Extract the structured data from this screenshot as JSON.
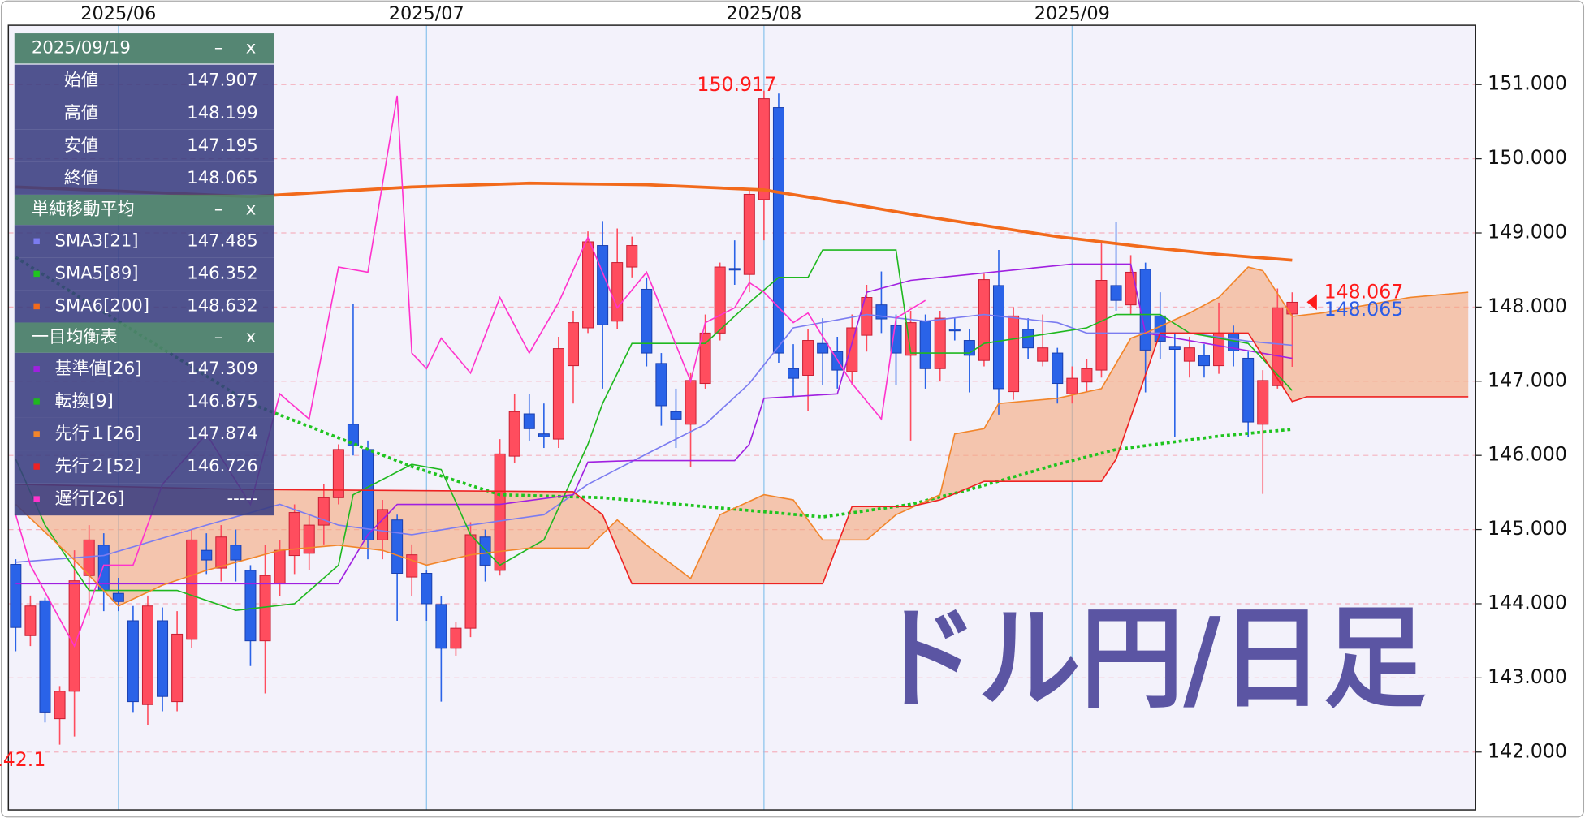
{
  "chart_data": {
    "type": "candlestick",
    "watermark": "ドル円/日足",
    "watermark_color": "#5b55a3",
    "up_color": "#ff4d5e",
    "down_color": "#2a63e8",
    "grid": true,
    "categories": [
      null,
      null,
      null,
      null,
      null,
      null,
      null,
      "2025/06",
      null,
      null,
      null,
      null,
      null,
      null,
      null,
      null,
      null,
      null,
      null,
      null,
      null,
      null,
      null,
      null,
      null,
      null,
      null,
      null,
      "2025/07",
      null,
      null,
      null,
      null,
      null,
      null,
      null,
      null,
      null,
      null,
      null,
      null,
      null,
      null,
      null,
      null,
      null,
      null,
      null,
      null,
      null,
      null,
      "2025/08",
      null,
      null,
      null,
      null,
      null,
      null,
      null,
      null,
      null,
      null,
      null,
      null,
      null,
      null,
      null,
      null,
      null,
      null,
      null,
      null,
      "2025/09",
      null,
      null,
      null,
      null,
      null,
      null,
      null,
      null,
      null,
      null,
      null,
      null,
      null,
      null,
      null,
      null,
      null,
      null,
      null,
      null,
      null,
      null,
      null,
      null,
      null,
      null,
      null
    ],
    "candles": {
      "open": [
        144.53,
        143.57,
        144.04,
        142.45,
        142.82,
        144.38,
        144.79,
        144.14,
        143.77,
        142.64,
        143.77,
        142.68,
        143.52,
        144.72,
        144.48,
        144.79,
        144.45,
        143.5,
        144.27,
        144.65,
        144.68,
        145.06,
        145.43,
        146.42,
        146.08,
        144.86,
        145.13,
        144.36,
        144.41,
        143.99,
        143.4,
        143.67,
        144.9,
        144.45,
        145.99,
        146.56,
        146.29,
        146.22,
        147.21,
        147.72,
        148.83,
        147.81,
        148.54,
        148.24,
        147.24,
        146.59,
        146.42,
        146.97,
        147.65,
        148.52,
        148.44,
        149.45,
        150.69,
        147.17,
        147.08,
        147.51,
        147.4,
        147.13,
        147.62,
        148.03,
        147.75,
        147.35,
        147.81,
        147.17,
        147.7,
        147.55,
        147.28,
        148.29,
        146.86,
        147.7,
        147.27,
        147.38,
        146.83,
        146.99,
        147.15,
        148.29,
        148.03,
        148.51,
        147.88,
        147.47,
        147.27,
        147.35,
        147.21,
        147.65,
        147.31,
        146.42,
        146.94,
        147.907,
        null,
        null,
        null,
        null,
        null,
        null,
        null,
        null,
        null,
        null,
        null,
        null
      ],
      "high": [
        144.6,
        144.11,
        144.08,
        142.89,
        144.72,
        145.06,
        144.95,
        144.35,
        143.97,
        144.11,
        143.95,
        143.9,
        145.0,
        144.95,
        145.06,
        145.0,
        144.52,
        144.79,
        144.86,
        145.34,
        145.2,
        145.61,
        146.15,
        148.04,
        146.2,
        145.4,
        145.2,
        144.8,
        144.45,
        144.1,
        143.75,
        145.1,
        145.0,
        146.22,
        146.83,
        146.83,
        146.7,
        147.6,
        147.95,
        149.02,
        149.16,
        149.06,
        148.95,
        148.4,
        147.38,
        146.9,
        147.11,
        147.9,
        148.6,
        148.9,
        149.6,
        150.917,
        150.88,
        147.5,
        147.7,
        147.85,
        147.6,
        147.9,
        148.3,
        148.48,
        147.9,
        147.95,
        147.9,
        147.95,
        147.85,
        147.7,
        148.45,
        148.77,
        148.0,
        147.85,
        147.9,
        147.45,
        147.2,
        147.3,
        148.88,
        149.15,
        148.7,
        148.6,
        148.2,
        147.65,
        147.6,
        147.5,
        148.06,
        147.75,
        147.4,
        147.15,
        148.25,
        148.199,
        null,
        null,
        null,
        null,
        null,
        null,
        null,
        null,
        null,
        null,
        null,
        null
      ],
      "low": [
        143.36,
        143.43,
        142.4,
        142.1,
        142.21,
        143.84,
        143.9,
        143.9,
        142.54,
        142.37,
        142.55,
        142.55,
        143.4,
        144.4,
        144.3,
        144.3,
        143.16,
        142.79,
        144.1,
        144.4,
        144.45,
        144.8,
        145.34,
        146.0,
        144.6,
        144.6,
        143.77,
        144.1,
        143.77,
        142.68,
        143.3,
        143.55,
        144.3,
        144.38,
        145.9,
        146.2,
        146.1,
        146.1,
        146.7,
        147.65,
        146.9,
        147.7,
        148.4,
        147.2,
        146.4,
        146.1,
        145.84,
        146.9,
        147.55,
        148.3,
        148.2,
        148.9,
        147.25,
        146.8,
        146.6,
        146.95,
        146.9,
        146.95,
        147.4,
        147.65,
        146.95,
        146.2,
        146.9,
        147.0,
        147.55,
        146.85,
        147.2,
        146.55,
        146.75,
        147.3,
        147.2,
        146.7,
        146.7,
        146.85,
        147.05,
        147.95,
        147.9,
        146.85,
        147.3,
        146.25,
        147.05,
        147.05,
        147.1,
        147.2,
        146.25,
        145.481,
        146.9,
        147.195,
        null,
        null,
        null,
        null,
        null,
        null,
        null,
        null,
        null,
        null,
        null,
        null
      ],
      "close": [
        143.68,
        143.97,
        142.54,
        142.82,
        144.31,
        144.86,
        144.18,
        144.03,
        142.68,
        143.97,
        142.75,
        143.59,
        144.86,
        144.59,
        144.9,
        144.59,
        143.5,
        144.38,
        144.72,
        145.23,
        145.06,
        145.43,
        146.08,
        146.13,
        144.86,
        145.27,
        144.41,
        144.66,
        144.0,
        143.4,
        143.67,
        144.93,
        144.52,
        146.02,
        146.59,
        146.36,
        146.25,
        147.44,
        147.79,
        148.88,
        147.76,
        148.6,
        148.83,
        147.38,
        146.67,
        146.49,
        147.01,
        147.65,
        148.54,
        148.5,
        149.52,
        150.81,
        147.38,
        147.04,
        147.55,
        147.38,
        147.15,
        147.72,
        148.13,
        147.84,
        147.38,
        147.79,
        147.17,
        147.85,
        147.68,
        147.35,
        148.37,
        146.9,
        147.88,
        147.45,
        147.45,
        146.97,
        147.04,
        147.17,
        148.36,
        148.09,
        148.47,
        147.42,
        147.54,
        147.43,
        147.45,
        147.21,
        147.65,
        147.41,
        146.45,
        147.01,
        147.99,
        148.065,
        null,
        null,
        null,
        null,
        null,
        null,
        null,
        null,
        null,
        null,
        null,
        null
      ]
    },
    "groups": [
      "単純移動平均",
      "一目均衡表"
    ],
    "series": [
      {
        "name": "SMA3[21]",
        "group": 0,
        "color": "#7b7cf0",
        "style": "thin",
        "x": [
          0,
          6,
          13,
          18,
          22,
          27,
          31,
          36,
          39,
          43,
          47,
          50,
          53,
          58,
          62,
          66,
          71,
          73,
          80,
          84,
          87
        ],
        "values": [
          144.56,
          144.65,
          145.06,
          145.34,
          145.06,
          144.93,
          145.06,
          145.2,
          145.61,
          146.02,
          146.42,
          146.97,
          147.72,
          147.9,
          147.81,
          147.9,
          147.79,
          147.65,
          147.65,
          147.54,
          147.485
        ]
      },
      {
        "name": "SMA5[89]",
        "group": 0,
        "color": "#1fc41f",
        "style": "dotted",
        "x": [
          0,
          16,
          27,
          33,
          40,
          51,
          55,
          61,
          65,
          71,
          75,
          82,
          87
        ],
        "values": [
          148.67,
          146.7,
          145.85,
          145.47,
          145.43,
          145.24,
          145.17,
          145.34,
          145.54,
          145.88,
          146.08,
          146.26,
          146.352
        ]
      },
      {
        "name": "SMA6[200]",
        "group": 0,
        "color": "#f26a1b",
        "style": "thick",
        "x": [
          0,
          16,
          27,
          35,
          43,
          51,
          56,
          62,
          71,
          77,
          82,
          87
        ],
        "values": [
          149.62,
          149.49,
          149.62,
          149.67,
          149.65,
          149.58,
          149.42,
          149.22,
          148.95,
          148.81,
          148.71,
          148.632
        ]
      },
      {
        "name": "基準値[26]",
        "group": 1,
        "color": "#a020e0",
        "style": "thin",
        "x": [
          0,
          22,
          24,
          26,
          33,
          38,
          39,
          42,
          49,
          50,
          51,
          56,
          58,
          61,
          72,
          76,
          77,
          87
        ],
        "values": [
          144.27,
          144.27,
          144.93,
          145.34,
          145.34,
          145.47,
          145.91,
          145.93,
          145.93,
          146.15,
          146.77,
          146.83,
          148.2,
          148.36,
          148.58,
          148.58,
          147.65,
          147.309
        ]
      },
      {
        "name": "転換[9]",
        "group": 1,
        "color": "#1fb81f",
        "style": "thin",
        "x": [
          0,
          2,
          5,
          11,
          15,
          19,
          22,
          23,
          27,
          29,
          31,
          33,
          36,
          39,
          40,
          42,
          47,
          50,
          52,
          54,
          55,
          60,
          61,
          65,
          66,
          73,
          75,
          78,
          80,
          84,
          87
        ],
        "values": [
          145.95,
          145.06,
          144.18,
          144.18,
          143.91,
          144.0,
          144.52,
          145.47,
          145.88,
          145.81,
          144.93,
          144.52,
          144.86,
          146.15,
          146.7,
          147.51,
          147.51,
          148.06,
          148.4,
          148.4,
          148.77,
          148.77,
          147.38,
          147.38,
          147.51,
          147.72,
          147.9,
          147.9,
          147.65,
          147.51,
          146.875
        ]
      },
      {
        "name": "先行１[26]",
        "group": 1,
        "color": "#f2852a",
        "style": "thin",
        "fill_to_next": "#f5a77c",
        "x": [
          0,
          4,
          7,
          10,
          13,
          18,
          22,
          25,
          28,
          31,
          35,
          39,
          41,
          43,
          46,
          48,
          51,
          53,
          55,
          58,
          60,
          63,
          64,
          66,
          67,
          71,
          74,
          76,
          77,
          80,
          82,
          84,
          85,
          87,
          89,
          95,
          99
        ],
        "values": [
          145.34,
          144.59,
          143.97,
          144.25,
          144.45,
          144.72,
          144.79,
          144.72,
          144.52,
          144.66,
          144.75,
          144.75,
          145.13,
          144.79,
          144.34,
          145.2,
          145.47,
          145.4,
          144.86,
          144.86,
          145.2,
          145.47,
          146.29,
          146.36,
          146.7,
          146.77,
          146.9,
          147.58,
          147.65,
          147.92,
          148.13,
          148.54,
          148.49,
          147.874,
          147.92,
          148.13,
          148.2
        ]
      },
      {
        "name": "先行２[52]",
        "group": 1,
        "color": "#ee2222",
        "style": "thin",
        "x": [
          0,
          16,
          38,
          40,
          42,
          55,
          57,
          61,
          63,
          66,
          74,
          75,
          78,
          84,
          87,
          88,
          99
        ],
        "values": [
          145.61,
          145.54,
          145.51,
          145.2,
          144.27,
          144.27,
          145.31,
          145.31,
          145.4,
          145.65,
          145.65,
          145.95,
          147.65,
          147.65,
          146.726,
          146.79,
          146.79
        ]
      },
      {
        "name": "遅行[26]",
        "group": 1,
        "color": "#ff33cc",
        "style": "thin",
        "current_label": "-----",
        "x": [
          0,
          1,
          4,
          6,
          8,
          10,
          13,
          16,
          18,
          20,
          22,
          24,
          26,
          27,
          28,
          29,
          31,
          33,
          35,
          37,
          39,
          41,
          43,
          46,
          47,
          49,
          50,
          51,
          53,
          54,
          57,
          59,
          60,
          62
        ],
        "values": [
          145.2,
          144.52,
          143.43,
          144.52,
          144.52,
          145.61,
          146.29,
          145.34,
          146.83,
          146.49,
          148.54,
          148.47,
          150.85,
          147.38,
          147.17,
          147.58,
          147.11,
          148.13,
          147.38,
          148.06,
          148.94,
          147.99,
          148.47,
          147.0,
          147.79,
          147.99,
          148.33,
          148.2,
          147.79,
          147.92,
          146.97,
          146.49,
          147.85,
          148.09
        ]
      }
    ],
    "ylim": [
      141.22,
      151.8
    ],
    "yticks": [
      {
        "value": 142,
        "label": "142.000"
      },
      {
        "value": 143,
        "label": "143.000"
      },
      {
        "value": 144,
        "label": "144.000"
      },
      {
        "value": 145,
        "label": "145.000"
      },
      {
        "value": 146,
        "label": "146.000"
      },
      {
        "value": 147,
        "label": "147.000"
      },
      {
        "value": 148,
        "label": "148.000"
      },
      {
        "value": 149,
        "label": "149.000"
      },
      {
        "value": 150,
        "label": "150.000"
      },
      {
        "value": 151,
        "label": "151.000"
      }
    ],
    "price_markers": [
      {
        "value": 148.067,
        "color": "#ff1a1a"
      },
      {
        "value": 148.065,
        "color": "#2b5ce6"
      }
    ],
    "info_panel": {
      "date": "2025/09/19",
      "ohlc_labels": [
        "始値",
        "高値",
        "安値",
        "終値"
      ],
      "buttons": [
        "–",
        "x"
      ]
    }
  }
}
